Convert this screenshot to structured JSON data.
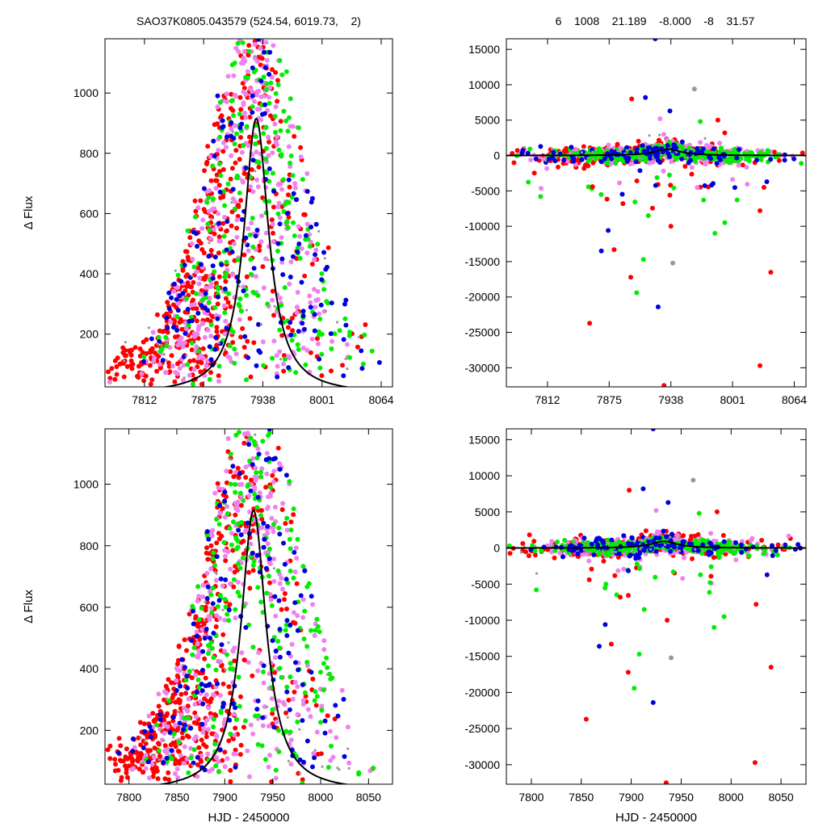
{
  "header": {
    "title_left": "SAO37K0805.043579 (524.54, 6019.73,    2)",
    "title_right": "6    1008    21.189    -8.000    -8    31.57"
  },
  "chart_data": [
    {
      "type": "scatter",
      "position": "top-left",
      "title": "SAO37K0805.043579 (524.54, 6019.73,    2)",
      "xlabel": "",
      "ylabel": "Δ Flux",
      "xlim": [
        7770,
        8076
      ],
      "ylim": [
        25,
        1180
      ],
      "xticks": [
        7812,
        7875,
        7938,
        8001,
        8064
      ],
      "yticks": [
        200,
        400,
        600,
        800,
        1000
      ],
      "grid": false,
      "model": {
        "kind": "lorentzian",
        "center": 7931,
        "amplitude": 915,
        "hwhm": 16,
        "color": "#000000"
      },
      "series": [
        {
          "color": "#ff0000",
          "count": 480,
          "center": 7880,
          "spread": 55,
          "peak": 1000
        },
        {
          "color": "#ee82ee",
          "count": 330,
          "center": 7920,
          "spread": 50,
          "peak": 1000
        },
        {
          "color": "#00ee00",
          "count": 220,
          "center": 7935,
          "spread": 45,
          "peak": 1000
        },
        {
          "color": "#0000dd",
          "count": 150,
          "center": 7925,
          "spread": 55,
          "peak": 1000
        },
        {
          "color": "#999999",
          "count": 40,
          "center": 7900,
          "spread": 80,
          "peak": 1000
        }
      ]
    },
    {
      "type": "scatter",
      "position": "top-right",
      "title": "6    1008    21.189    -8.000    -8    31.57",
      "xlabel": "",
      "ylabel": "",
      "xlim": [
        7770,
        8076
      ],
      "ylim": [
        -32700,
        16500
      ],
      "xticks": [
        7812,
        7875,
        7938,
        8001,
        8064
      ],
      "yticks": [
        15000,
        10000,
        5000,
        0,
        -5000,
        -10000,
        -15000,
        -20000,
        -25000,
        -30000
      ],
      "grid": false,
      "model": {
        "kind": "lorentzian",
        "center": 7935,
        "amplitude": 915,
        "hwhm": 16,
        "color": "#000000"
      },
      "series": [
        {
          "color": "#ff0000",
          "count": 300,
          "center": 7900,
          "spread": 60,
          "peak": 1000
        },
        {
          "color": "#ee82ee",
          "count": 250,
          "center": 7920,
          "spread": 55,
          "peak": 1000
        },
        {
          "color": "#00ee00",
          "count": 350,
          "center": 7935,
          "spread": 55,
          "peak": 1000
        },
        {
          "color": "#0000dd",
          "count": 120,
          "center": 7925,
          "spread": 60,
          "peak": 1000
        },
        {
          "color": "#999999",
          "count": 40,
          "center": 7910,
          "spread": 80,
          "peak": 1000
        }
      ],
      "outliers": [
        {
          "x": 7922,
          "y": 16500,
          "color": "#0000dd"
        },
        {
          "x": 7912,
          "y": 8200,
          "color": "#0000dd"
        },
        {
          "x": 7898,
          "y": 8000,
          "color": "#ff0000"
        },
        {
          "x": 7937,
          "y": 6300,
          "color": "#0000dd"
        },
        {
          "x": 7927,
          "y": 5200,
          "color": "#ee82ee"
        },
        {
          "x": 7986,
          "y": 5000,
          "color": "#ff0000"
        },
        {
          "x": 7968,
          "y": 4800,
          "color": "#00ee00"
        },
        {
          "x": 7962,
          "y": 9400,
          "color": "#999999"
        },
        {
          "x": 7993,
          "y": 3200,
          "color": "#ff0000"
        },
        {
          "x": 7805,
          "y": -5800,
          "color": "#00ee00"
        },
        {
          "x": 7858,
          "y": -4400,
          "color": "#ff0000"
        },
        {
          "x": 7889,
          "y": -6800,
          "color": "#ff0000"
        },
        {
          "x": 7915,
          "y": -8500,
          "color": "#00ee00"
        },
        {
          "x": 7938,
          "y": -10000,
          "color": "#ff0000"
        },
        {
          "x": 7874,
          "y": -10600,
          "color": "#0000dd"
        },
        {
          "x": 7880,
          "y": -13300,
          "color": "#ff0000"
        },
        {
          "x": 7867,
          "y": -13500,
          "color": "#0000dd"
        },
        {
          "x": 7910,
          "y": -14700,
          "color": "#00ee00"
        },
        {
          "x": 7897,
          "y": -17200,
          "color": "#ff0000"
        },
        {
          "x": 7903,
          "y": -19400,
          "color": "#00ee00"
        },
        {
          "x": 7925,
          "y": -21400,
          "color": "#0000dd"
        },
        {
          "x": 7855,
          "y": -23700,
          "color": "#ff0000"
        },
        {
          "x": 8029,
          "y": -29700,
          "color": "#ff0000"
        },
        {
          "x": 7931,
          "y": -32500,
          "color": "#ff0000"
        },
        {
          "x": 8040,
          "y": -16500,
          "color": "#ff0000"
        },
        {
          "x": 7983,
          "y": -11000,
          "color": "#00ee00"
        },
        {
          "x": 7993,
          "y": -9500,
          "color": "#00ee00"
        },
        {
          "x": 7940,
          "y": -15200,
          "color": "#999999"
        },
        {
          "x": 7937,
          "y": -5600,
          "color": "#ff0000"
        },
        {
          "x": 8033,
          "y": -4500,
          "color": "#ff0000"
        },
        {
          "x": 8029,
          "y": -7800,
          "color": "#ff0000"
        },
        {
          "x": 8036,
          "y": -3700,
          "color": "#0000dd"
        }
      ]
    },
    {
      "type": "scatter",
      "position": "bottom-left",
      "title": "",
      "xlabel": "HJD - 2450000",
      "ylabel": "Δ Flux",
      "xlim": [
        7775,
        8075
      ],
      "ylim": [
        25,
        1180
      ],
      "xticks": [
        7800,
        7850,
        7900,
        7950,
        8000,
        8050
      ],
      "yticks": [
        200,
        400,
        600,
        800,
        1000
      ],
      "grid": false,
      "model": {
        "kind": "lorentzian",
        "center": 7930,
        "amplitude": 915,
        "hwhm": 16,
        "color": "#000000"
      },
      "series": [
        {
          "color": "#ff0000",
          "count": 480,
          "center": 7875,
          "spread": 55,
          "peak": 1000
        },
        {
          "color": "#ee82ee",
          "count": 330,
          "center": 7915,
          "spread": 50,
          "peak": 1000
        },
        {
          "color": "#00ee00",
          "count": 220,
          "center": 7930,
          "spread": 45,
          "peak": 1000
        },
        {
          "color": "#0000dd",
          "count": 150,
          "center": 7920,
          "spread": 55,
          "peak": 1000
        },
        {
          "color": "#999999",
          "count": 40,
          "center": 7895,
          "spread": 80,
          "peak": 1000
        }
      ]
    },
    {
      "type": "scatter",
      "position": "bottom-right",
      "title": "",
      "xlabel": "HJD - 2450000",
      "ylabel": "",
      "xlim": [
        7775,
        8075
      ],
      "ylim": [
        -32700,
        16500
      ],
      "xticks": [
        7800,
        7850,
        7900,
        7950,
        8000,
        8050
      ],
      "yticks": [
        15000,
        10000,
        5000,
        0,
        -5000,
        -10000,
        -15000,
        -20000,
        -25000,
        -30000
      ],
      "grid": false,
      "model": {
        "kind": "lorentzian",
        "center": 7933,
        "amplitude": 915,
        "hwhm": 16,
        "color": "#000000"
      },
      "series": [
        {
          "color": "#ff0000",
          "count": 300,
          "center": 7895,
          "spread": 60,
          "peak": 1000
        },
        {
          "color": "#ee82ee",
          "count": 250,
          "center": 7915,
          "spread": 55,
          "peak": 1000
        },
        {
          "color": "#00ee00",
          "count": 350,
          "center": 7930,
          "spread": 55,
          "peak": 1000
        },
        {
          "color": "#0000dd",
          "count": 120,
          "center": 7920,
          "spread": 60,
          "peak": 1000
        },
        {
          "color": "#999999",
          "count": 40,
          "center": 7905,
          "spread": 80,
          "peak": 1000
        }
      ],
      "outliers": [
        {
          "x": 7922,
          "y": 16500,
          "color": "#0000dd"
        },
        {
          "x": 7912,
          "y": 8200,
          "color": "#0000dd"
        },
        {
          "x": 7898,
          "y": 8000,
          "color": "#ff0000"
        },
        {
          "x": 7937,
          "y": 6300,
          "color": "#0000dd"
        },
        {
          "x": 7925,
          "y": 5200,
          "color": "#ee82ee"
        },
        {
          "x": 7986,
          "y": 5000,
          "color": "#ff0000"
        },
        {
          "x": 7968,
          "y": 4800,
          "color": "#00ee00"
        },
        {
          "x": 7962,
          "y": 9400,
          "color": "#999999"
        },
        {
          "x": 7805,
          "y": -5800,
          "color": "#00ee00"
        },
        {
          "x": 7858,
          "y": -4400,
          "color": "#ff0000"
        },
        {
          "x": 7889,
          "y": -6800,
          "color": "#ff0000"
        },
        {
          "x": 7913,
          "y": -8500,
          "color": "#00ee00"
        },
        {
          "x": 7936,
          "y": -10000,
          "color": "#ff0000"
        },
        {
          "x": 7874,
          "y": -10600,
          "color": "#0000dd"
        },
        {
          "x": 7880,
          "y": -13300,
          "color": "#ff0000"
        },
        {
          "x": 7868,
          "y": -13600,
          "color": "#0000dd"
        },
        {
          "x": 7908,
          "y": -14700,
          "color": "#00ee00"
        },
        {
          "x": 7897,
          "y": -17200,
          "color": "#ff0000"
        },
        {
          "x": 7903,
          "y": -19400,
          "color": "#00ee00"
        },
        {
          "x": 7922,
          "y": -21400,
          "color": "#0000dd"
        },
        {
          "x": 7855,
          "y": -23700,
          "color": "#ff0000"
        },
        {
          "x": 8024,
          "y": -29700,
          "color": "#ff0000"
        },
        {
          "x": 7935,
          "y": -32500,
          "color": "#ff0000"
        },
        {
          "x": 8040,
          "y": -16500,
          "color": "#ff0000"
        },
        {
          "x": 7983,
          "y": -11000,
          "color": "#00ee00"
        },
        {
          "x": 7993,
          "y": -9500,
          "color": "#00ee00"
        },
        {
          "x": 7940,
          "y": -15200,
          "color": "#999999"
        },
        {
          "x": 8025,
          "y": -7800,
          "color": "#ff0000"
        },
        {
          "x": 8036,
          "y": -3700,
          "color": "#0000dd"
        }
      ]
    }
  ]
}
